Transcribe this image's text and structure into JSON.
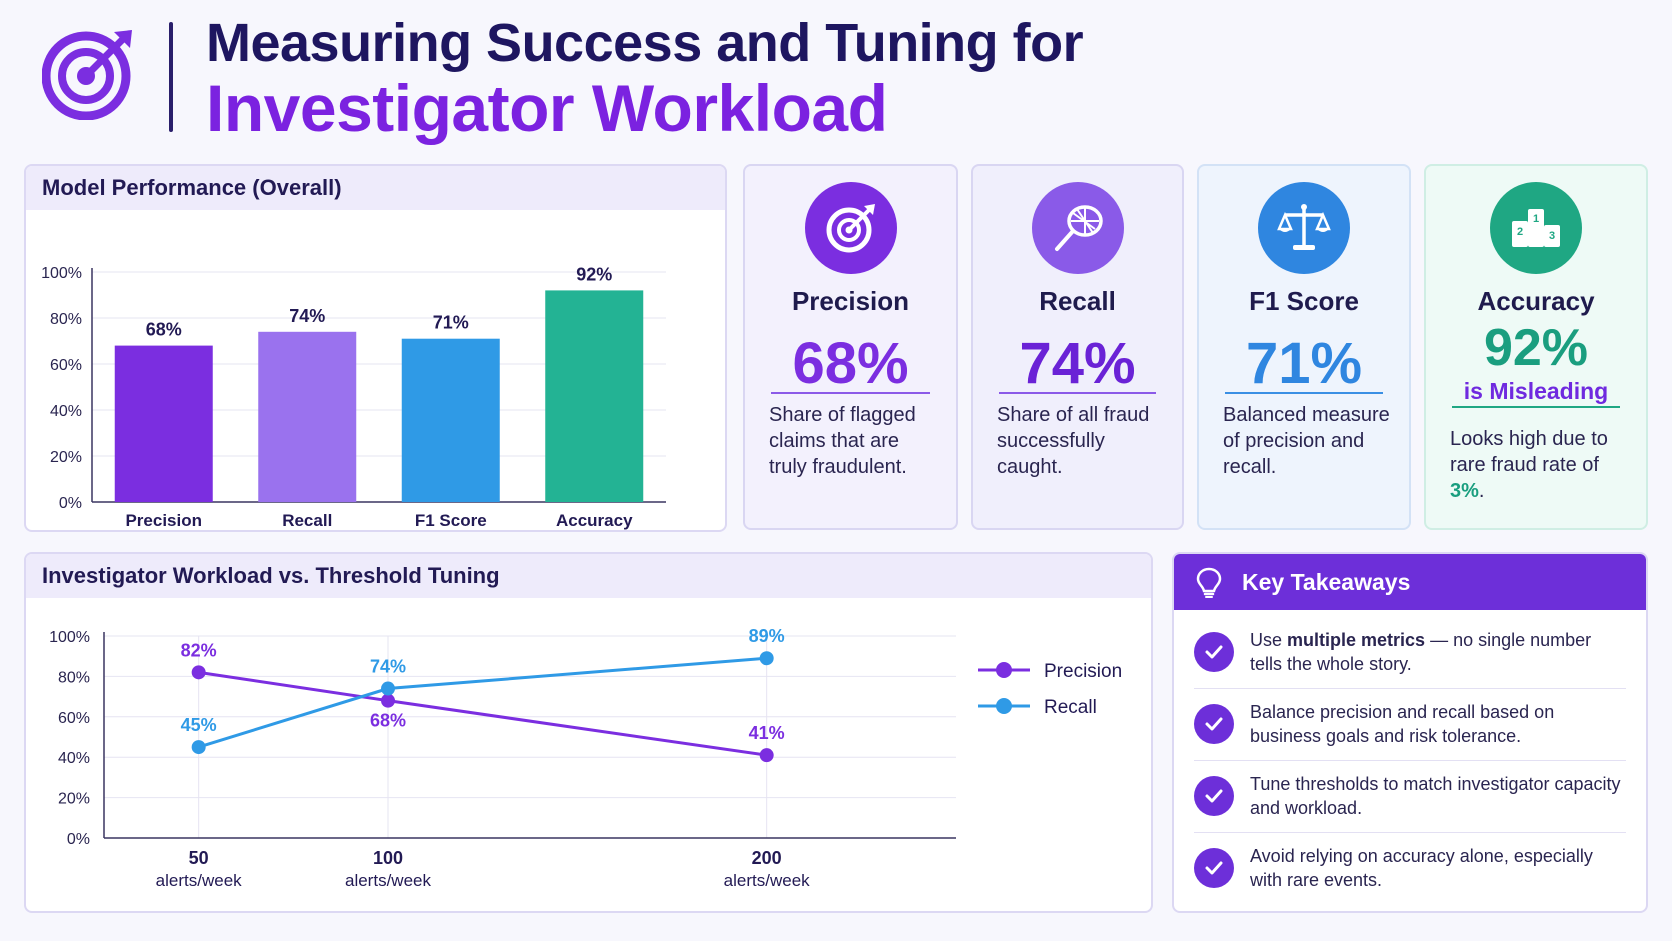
{
  "header": {
    "title_line1": "Measuring Success and Tuning for",
    "title_line2": "Investigator Workload",
    "logo_icon": "target-arrow-icon"
  },
  "performance_panel": {
    "title": "Model Performance (Overall)"
  },
  "workload_panel": {
    "title": "Investigator Workload vs. Threshold Tuning"
  },
  "cards": {
    "precision": {
      "icon": "target-icon",
      "title": "Precision",
      "value": "68%",
      "description": "Share of flagged claims that are truly fraudulent.",
      "color": "#7b2ee0"
    },
    "recall": {
      "icon": "net-icon",
      "title": "Recall",
      "value": "74%",
      "description": "Share of all fraud successfully caught.",
      "color": "#7d2fe6"
    },
    "f1": {
      "icon": "scales-icon",
      "title": "F1 Score",
      "value": "71%",
      "description": "Balanced measure of precision and recall.",
      "color": "#2f86e0"
    },
    "accuracy": {
      "icon": "podium-icon",
      "title": "Accuracy",
      "value": "92%",
      "subtitle": "is Misleading",
      "description_prefix": "Looks high due to rare fraud rate of ",
      "description_highlight": "3%",
      "description_suffix": ".",
      "color": "#1a9e7f"
    }
  },
  "takeaways": {
    "title": "Key Takeaways",
    "icon": "lightbulb-icon",
    "items": [
      {
        "pre": "Use ",
        "bold": "multiple metrics",
        "post": " — no single number tells the whole story."
      },
      {
        "pre": "Balance precision and recall based on business goals and risk tolerance.",
        "bold": "",
        "post": ""
      },
      {
        "pre": "Tune thresholds to match investigator capacity and workload.",
        "bold": "",
        "post": ""
      },
      {
        "pre": "Avoid relying on accuracy alone, especially with rare events.",
        "bold": "",
        "post": ""
      }
    ]
  },
  "colors": {
    "purple": "#7b2ee0",
    "light_purple": "#9a72ee",
    "blue": "#2f9ae6",
    "teal": "#23b394"
  },
  "chart_data": [
    {
      "type": "bar",
      "title": "Model Performance (Overall)",
      "categories": [
        "Precision",
        "Recall",
        "F1 Score",
        "Accuracy"
      ],
      "values": [
        68,
        74,
        71,
        92
      ],
      "value_labels": [
        "68%",
        "74%",
        "71%",
        "92%"
      ],
      "bar_colors": [
        "#7b2ee0",
        "#9a72ee",
        "#2f9ae6",
        "#23b394"
      ],
      "ylim": [
        0,
        100
      ],
      "yticks": [
        "0%",
        "20%",
        "40%",
        "60%",
        "80%",
        "100%"
      ],
      "grid": true
    },
    {
      "type": "line",
      "title": "Investigator Workload vs. Threshold Tuning",
      "x": [
        50,
        100,
        200
      ],
      "x_labels": [
        [
          "50",
          "alerts/week"
        ],
        [
          "100",
          "alerts/week"
        ],
        [
          "200",
          "alerts/week"
        ]
      ],
      "series": [
        {
          "name": "Precision",
          "values": [
            82,
            68,
            41
          ],
          "labels": [
            "82%",
            "68%",
            "41%"
          ],
          "color": "#7b2ee0"
        },
        {
          "name": "Recall",
          "values": [
            45,
            74,
            89
          ],
          "labels": [
            "45%",
            "74%",
            "89%"
          ],
          "color": "#2f9ae6"
        }
      ],
      "ylim": [
        0,
        100
      ],
      "yticks": [
        "0%",
        "20%",
        "40%",
        "60%",
        "80%",
        "100%"
      ],
      "legend_position": "right",
      "grid": true
    }
  ]
}
